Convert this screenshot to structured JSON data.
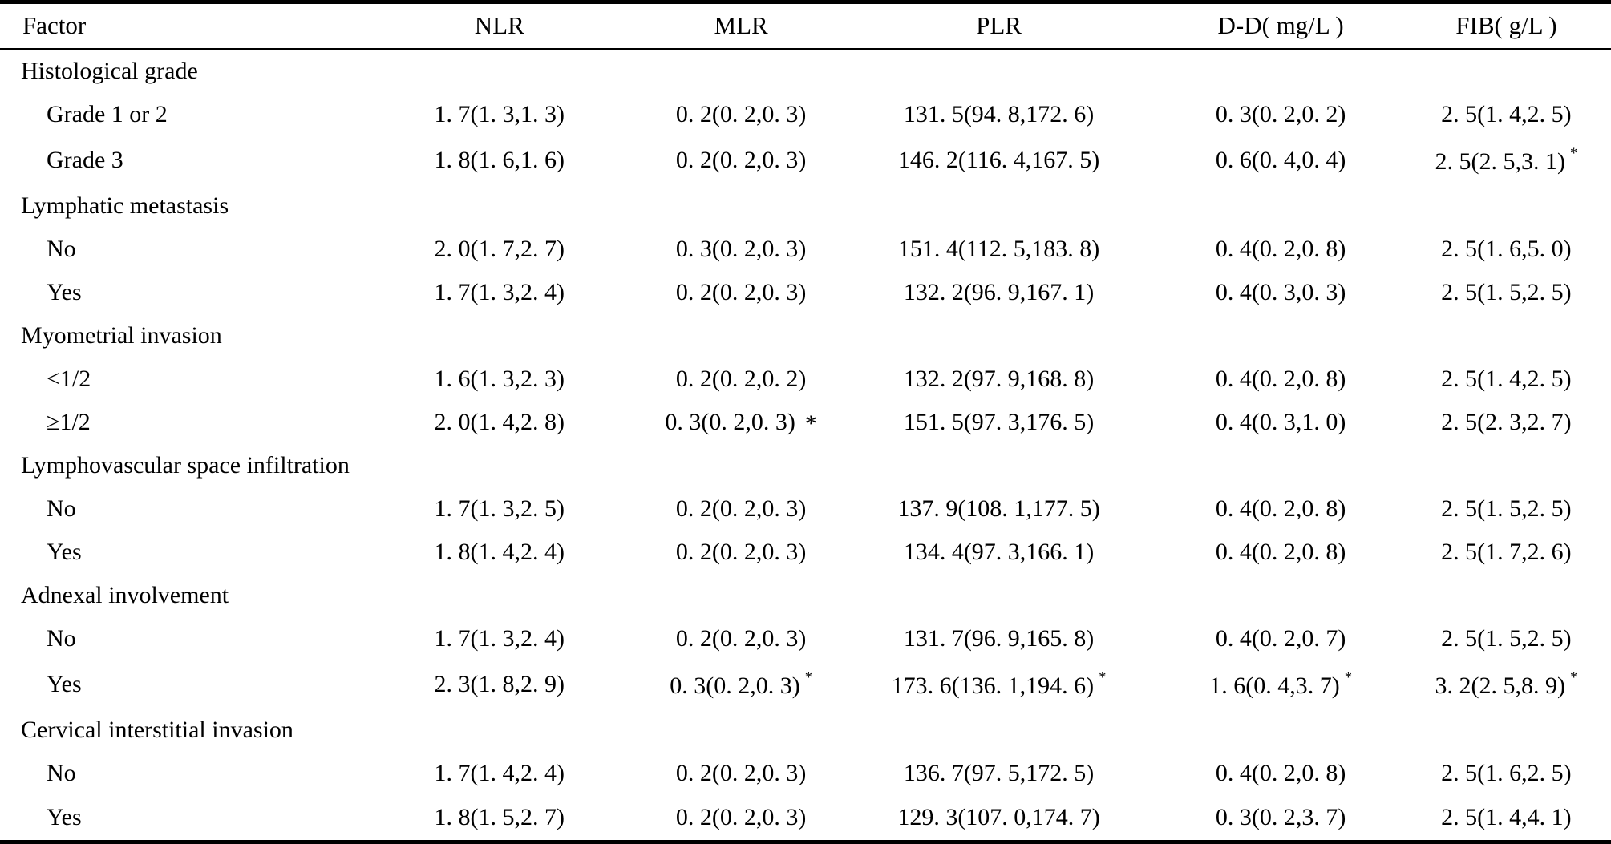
{
  "table": {
    "significance_symbol": "*",
    "columns": [
      "Factor",
      "NLR",
      "MLR",
      "PLR",
      "D-D( mg/L )",
      "FIB( g/L )"
    ],
    "rows": [
      {
        "type": "group",
        "factor": "Histological grade"
      },
      {
        "type": "data",
        "factor": "Grade 1 or 2",
        "values": [
          {
            "text": "1. 7(1. 3,1. 3)",
            "mark": ""
          },
          {
            "text": "0. 2(0. 2,0. 3)",
            "mark": ""
          },
          {
            "text": "131. 5(94. 8,172. 6)",
            "mark": ""
          },
          {
            "text": "0. 3(0. 2,0. 2)",
            "mark": ""
          },
          {
            "text": "2. 5(1. 4,2. 5)",
            "mark": ""
          }
        ]
      },
      {
        "type": "data",
        "factor": "Grade 3",
        "values": [
          {
            "text": "1. 8(1. 6,1. 6)",
            "mark": ""
          },
          {
            "text": "0. 2(0. 2,0. 3)",
            "mark": ""
          },
          {
            "text": "146. 2(116. 4,167. 5)",
            "mark": ""
          },
          {
            "text": "0. 6(0. 4,0. 4)",
            "mark": ""
          },
          {
            "text": "2. 5(2. 5,3. 1)",
            "mark": "super"
          }
        ]
      },
      {
        "type": "group",
        "factor": "Lymphatic metastasis"
      },
      {
        "type": "data",
        "factor": "No",
        "values": [
          {
            "text": "2. 0(1. 7,2. 7)",
            "mark": ""
          },
          {
            "text": "0. 3(0. 2,0. 3)",
            "mark": ""
          },
          {
            "text": "151. 4(112. 5,183. 8)",
            "mark": ""
          },
          {
            "text": "0. 4(0. 2,0. 8)",
            "mark": ""
          },
          {
            "text": "2. 5(1. 6,5. 0)",
            "mark": ""
          }
        ]
      },
      {
        "type": "data",
        "factor": "Yes",
        "values": [
          {
            "text": "1. 7(1. 3,2. 4)",
            "mark": ""
          },
          {
            "text": "0. 2(0. 2,0. 3)",
            "mark": ""
          },
          {
            "text": "132. 2(96. 9,167. 1)",
            "mark": ""
          },
          {
            "text": "0. 4(0. 3,0. 3)",
            "mark": ""
          },
          {
            "text": "2. 5(1. 5,2. 5)",
            "mark": ""
          }
        ]
      },
      {
        "type": "group",
        "factor": "Myometrial invasion"
      },
      {
        "type": "data",
        "factor": "<1/2",
        "values": [
          {
            "text": "1. 6(1. 3,2. 3)",
            "mark": ""
          },
          {
            "text": "0. 2(0. 2,0. 2)",
            "mark": ""
          },
          {
            "text": "132. 2(97. 9,168. 8)",
            "mark": ""
          },
          {
            "text": "0. 4(0. 2,0. 8)",
            "mark": ""
          },
          {
            "text": "2. 5(1. 4,2. 5)",
            "mark": ""
          }
        ]
      },
      {
        "type": "data",
        "factor": "≥1/2",
        "values": [
          {
            "text": "2. 0(1. 4,2. 8)",
            "mark": ""
          },
          {
            "text": "0. 3(0. 2,0. 3)",
            "mark": "inline"
          },
          {
            "text": "151. 5(97. 3,176. 5)",
            "mark": ""
          },
          {
            "text": "0. 4(0. 3,1. 0)",
            "mark": ""
          },
          {
            "text": "2. 5(2. 3,2. 7)",
            "mark": ""
          }
        ]
      },
      {
        "type": "group",
        "factor": "Lymphovascular space infiltration"
      },
      {
        "type": "data",
        "factor": "No",
        "values": [
          {
            "text": "1. 7(1. 3,2. 5)",
            "mark": ""
          },
          {
            "text": "0. 2(0. 2,0. 3)",
            "mark": ""
          },
          {
            "text": "137. 9(108. 1,177. 5)",
            "mark": ""
          },
          {
            "text": "0. 4(0. 2,0. 8)",
            "mark": ""
          },
          {
            "text": "2. 5(1. 5,2. 5)",
            "mark": ""
          }
        ]
      },
      {
        "type": "data",
        "factor": "Yes",
        "values": [
          {
            "text": "1. 8(1. 4,2. 4)",
            "mark": ""
          },
          {
            "text": "0. 2(0. 2,0. 3)",
            "mark": ""
          },
          {
            "text": "134. 4(97. 3,166. 1)",
            "mark": ""
          },
          {
            "text": "0. 4(0. 2,0. 8)",
            "mark": ""
          },
          {
            "text": "2. 5(1. 7,2. 6)",
            "mark": ""
          }
        ]
      },
      {
        "type": "group",
        "factor": "Adnexal involvement"
      },
      {
        "type": "data",
        "factor": "No",
        "values": [
          {
            "text": "1. 7(1. 3,2. 4)",
            "mark": ""
          },
          {
            "text": "0. 2(0. 2,0. 3)",
            "mark": ""
          },
          {
            "text": "131. 7(96. 9,165. 8)",
            "mark": ""
          },
          {
            "text": "0. 4(0. 2,0. 7)",
            "mark": ""
          },
          {
            "text": "2. 5(1. 5,2. 5)",
            "mark": ""
          }
        ]
      },
      {
        "type": "data",
        "factor": "Yes",
        "values": [
          {
            "text": "2. 3(1. 8,2. 9)",
            "mark": ""
          },
          {
            "text": "0. 3(0. 2,0. 3)",
            "mark": "super"
          },
          {
            "text": "173. 6(136. 1,194. 6)",
            "mark": "super"
          },
          {
            "text": "1. 6(0. 4,3. 7)",
            "mark": "super"
          },
          {
            "text": "3. 2(2. 5,8. 9)",
            "mark": "super"
          }
        ]
      },
      {
        "type": "group",
        "factor": "Cervical interstitial invasion"
      },
      {
        "type": "data",
        "factor": "No",
        "values": [
          {
            "text": "1. 7(1. 4,2. 4)",
            "mark": ""
          },
          {
            "text": "0. 2(0. 2,0. 3)",
            "mark": ""
          },
          {
            "text": "136. 7(97. 5,172. 5)",
            "mark": ""
          },
          {
            "text": "0. 4(0. 2,0. 8)",
            "mark": ""
          },
          {
            "text": "2. 5(1. 6,2. 5)",
            "mark": ""
          }
        ]
      },
      {
        "type": "data",
        "factor": "Yes",
        "values": [
          {
            "text": "1. 8(1. 5,2. 7)",
            "mark": ""
          },
          {
            "text": "0. 2(0. 2,0. 3)",
            "mark": ""
          },
          {
            "text": "129. 3(107. 0,174. 7)",
            "mark": ""
          },
          {
            "text": "0. 3(0. 2,3. 7)",
            "mark": ""
          },
          {
            "text": "2. 5(1. 4,4. 1)",
            "mark": ""
          }
        ]
      }
    ]
  }
}
